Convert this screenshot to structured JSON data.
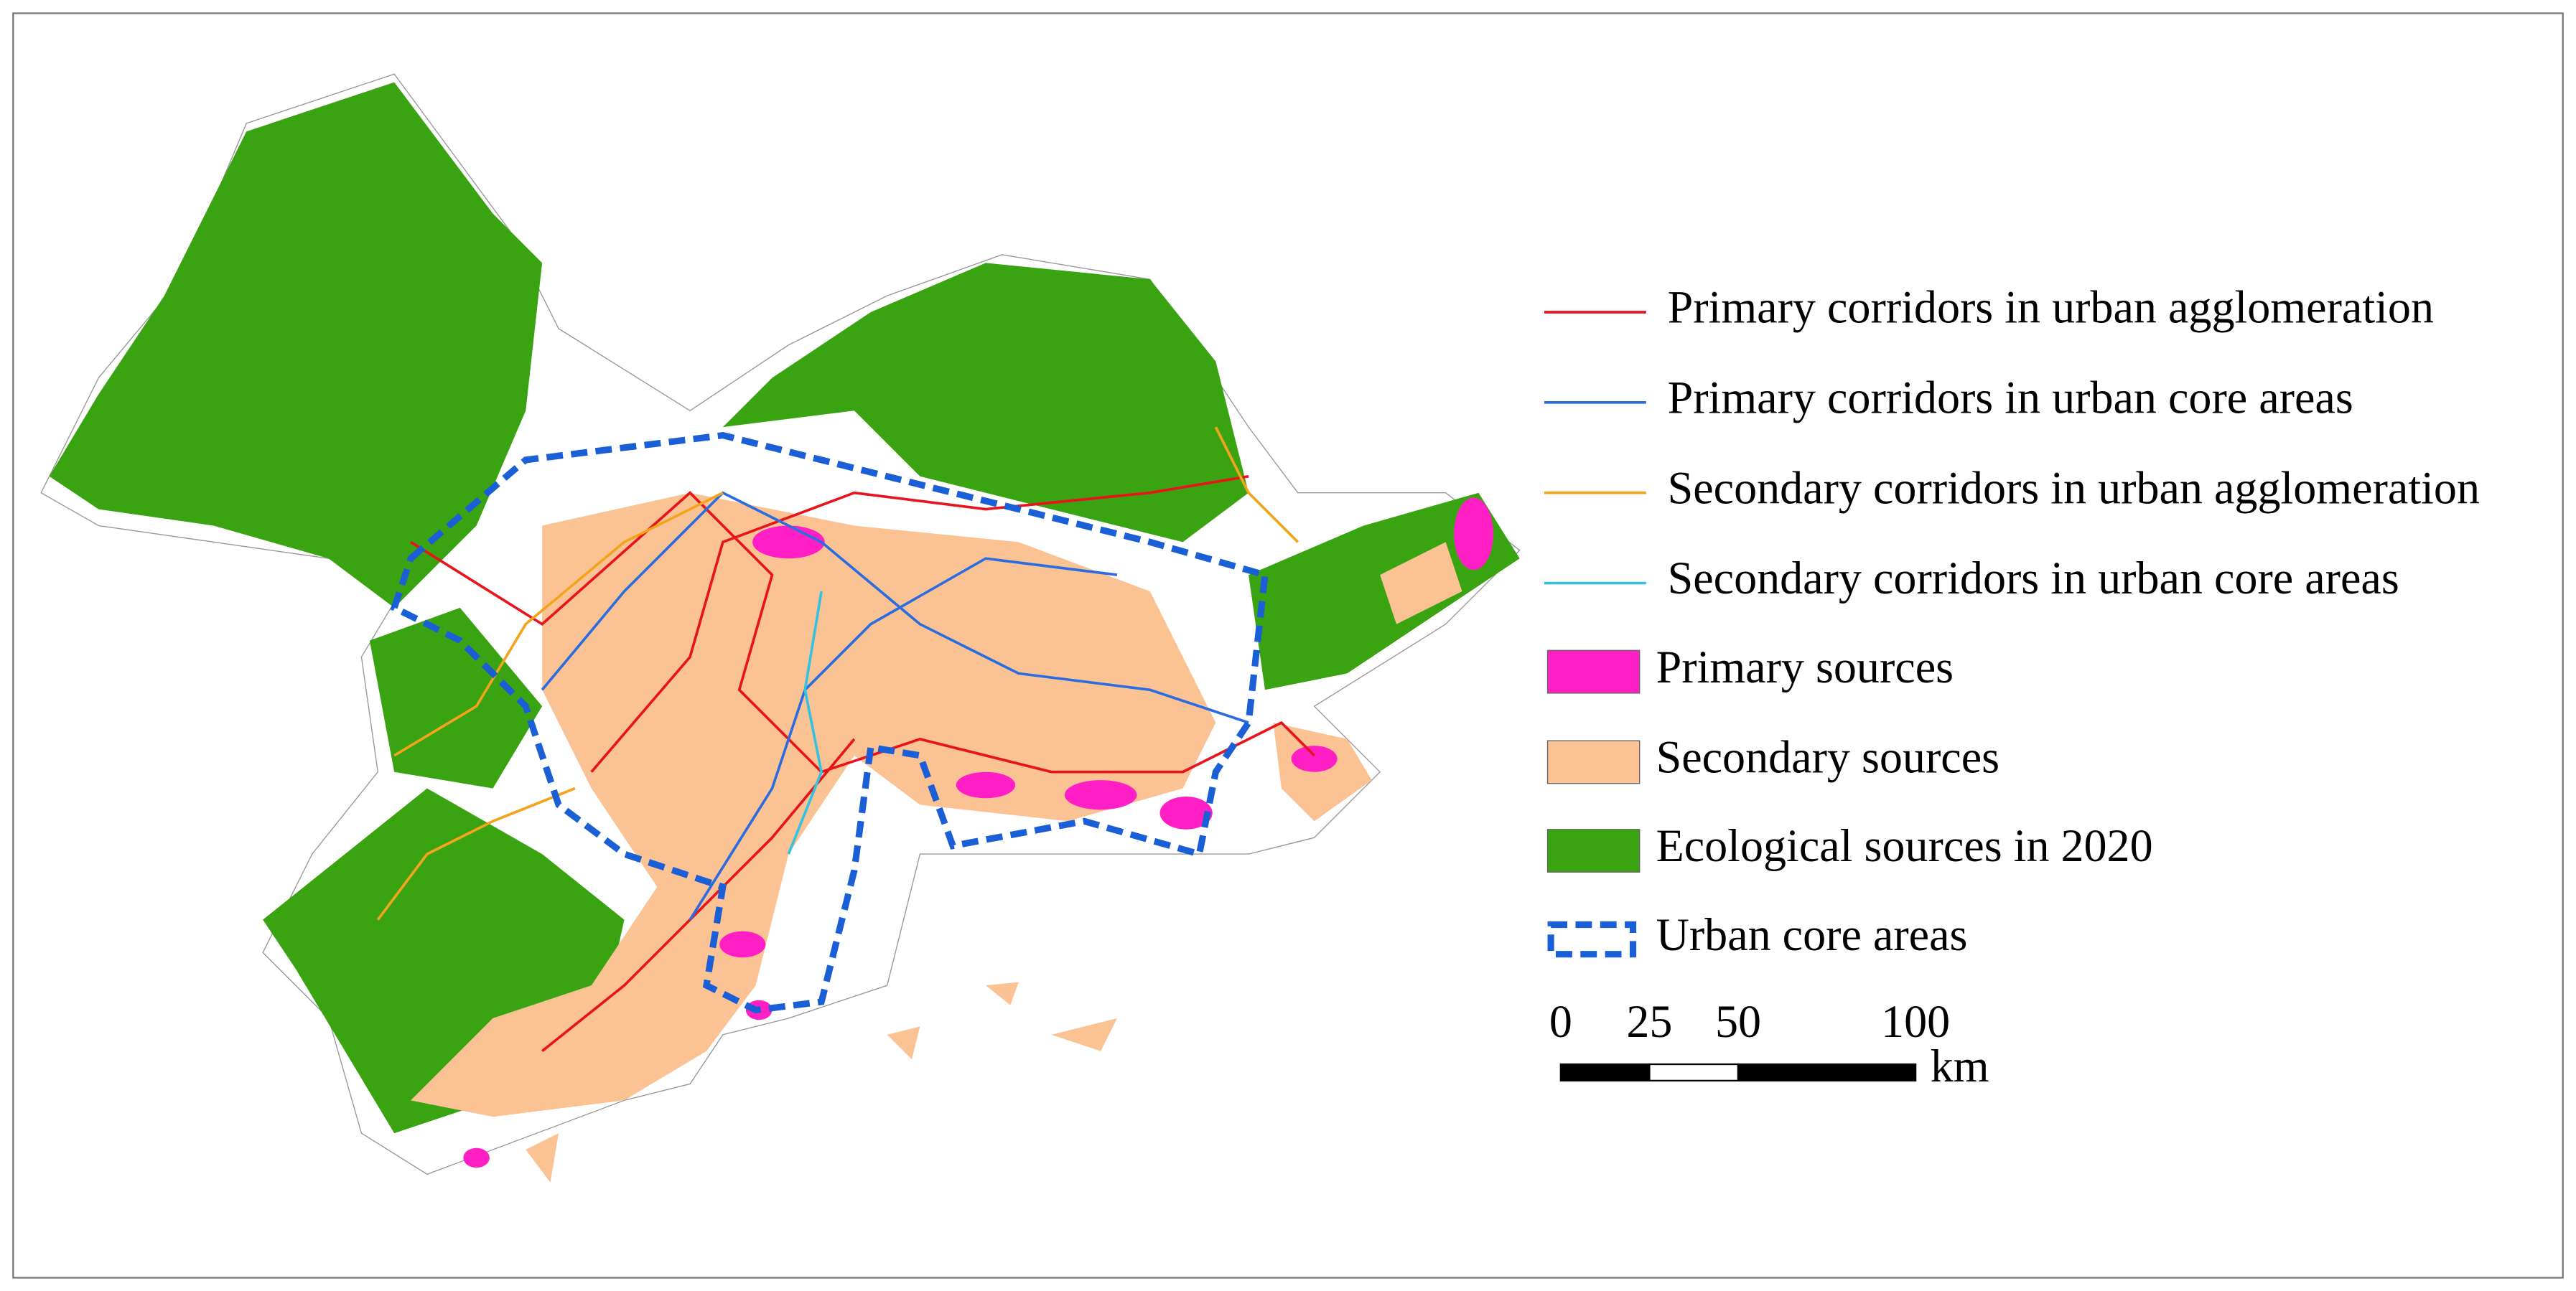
{
  "legend": {
    "items": [
      {
        "label": "Primary corridors in urban agglomeration",
        "color": "#e8141b",
        "kind": "line"
      },
      {
        "label": "Primary corridors in urban core areas",
        "color": "#2b6de0",
        "kind": "line"
      },
      {
        "label": "Secondary corridors in urban agglomeration",
        "color": "#f2a51c",
        "kind": "line"
      },
      {
        "label": "Secondary corridors in urban core areas",
        "color": "#35c2e0",
        "kind": "line"
      },
      {
        "label": "Primary sources",
        "color": "#ff1fc4",
        "kind": "fill"
      },
      {
        "label": "Secondary sources",
        "color": "#fbc393",
        "kind": "fill"
      },
      {
        "label": "Ecological sources in 2020",
        "color": "#3aa312",
        "kind": "fill"
      },
      {
        "label": "Urban core areas",
        "color": "#1a5fd6",
        "kind": "dashed"
      }
    ]
  },
  "scale_bar": {
    "ticks": [
      0,
      25,
      50,
      100
    ],
    "unit": "km"
  }
}
